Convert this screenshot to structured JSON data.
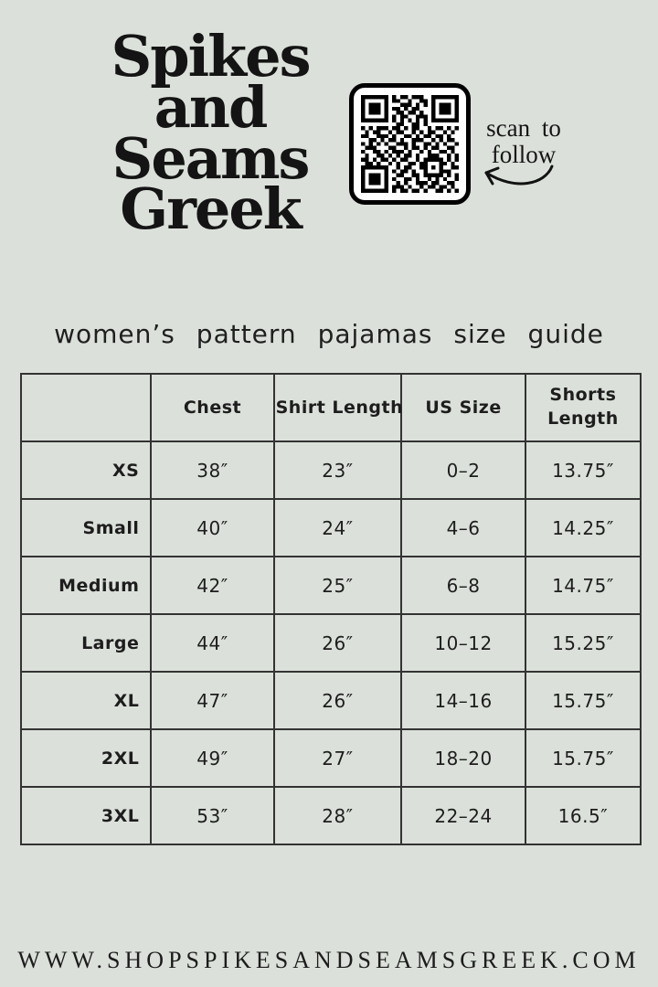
{
  "page": {
    "background": "#dbe1da",
    "text_color": "#1b1b1b",
    "border_color": "#333333",
    "qr_foreground": "#000000",
    "qr_background": "#ffffff"
  },
  "header": {
    "logo_lines": [
      "Spikes",
      "and",
      "Seams",
      "Greek"
    ],
    "qr": {
      "caption": [
        "scan to",
        "follow"
      ],
      "matrix": [
        "1111111010110111001111111",
        "1000001011001001101000001",
        "1011101000111010101011101",
        "1011101011010110001011101",
        "1011101001101101001011101",
        "1000001010110011101000001",
        "1111111010101010101111111",
        "0000000001100110100000000",
        "1010111011010110010110101",
        "0101100101100101011001010",
        "1100111010011010110110100",
        "0011010110100111001010110",
        "1010101001110100110101001",
        "0111000110010110101100110",
        "1001101011101001010011010",
        "0100110101011010011100101",
        "1101011010110010111110101",
        "0110100101001101100011010",
        "1111111001011001101010011",
        "1000001010110100100011100",
        "1011101001100110111110101",
        "1011101010011010010101001",
        "1011101001010011101100110",
        "1000001011101001011011010",
        "1111111010110110100110101"
      ]
    }
  },
  "title": "women’s pattern pajamas size guide",
  "table": {
    "columns": [
      "",
      "Chest",
      "Shirt Length",
      "US Size",
      "Shorts Length"
    ],
    "rows": [
      [
        "XS",
        "38″",
        "23″",
        "0–2",
        "13.75″"
      ],
      [
        "Small",
        "40″",
        "24″",
        "4–6",
        "14.25″"
      ],
      [
        "Medium",
        "42″",
        "25″",
        "6–8",
        "14.75″"
      ],
      [
        "Large",
        "44″",
        "26″",
        "10–12",
        "15.25″"
      ],
      [
        "XL",
        "47″",
        "26″",
        "14–16",
        "15.75″"
      ],
      [
        "2XL",
        "49″",
        "27″",
        "18–20",
        "15.75″"
      ],
      [
        "3XL",
        "53″",
        "28″",
        "22–24",
        "16.5″"
      ]
    ]
  },
  "footer": {
    "website": "WWW.SHOPSPIKESANDSEAMSGREEK.COM"
  }
}
